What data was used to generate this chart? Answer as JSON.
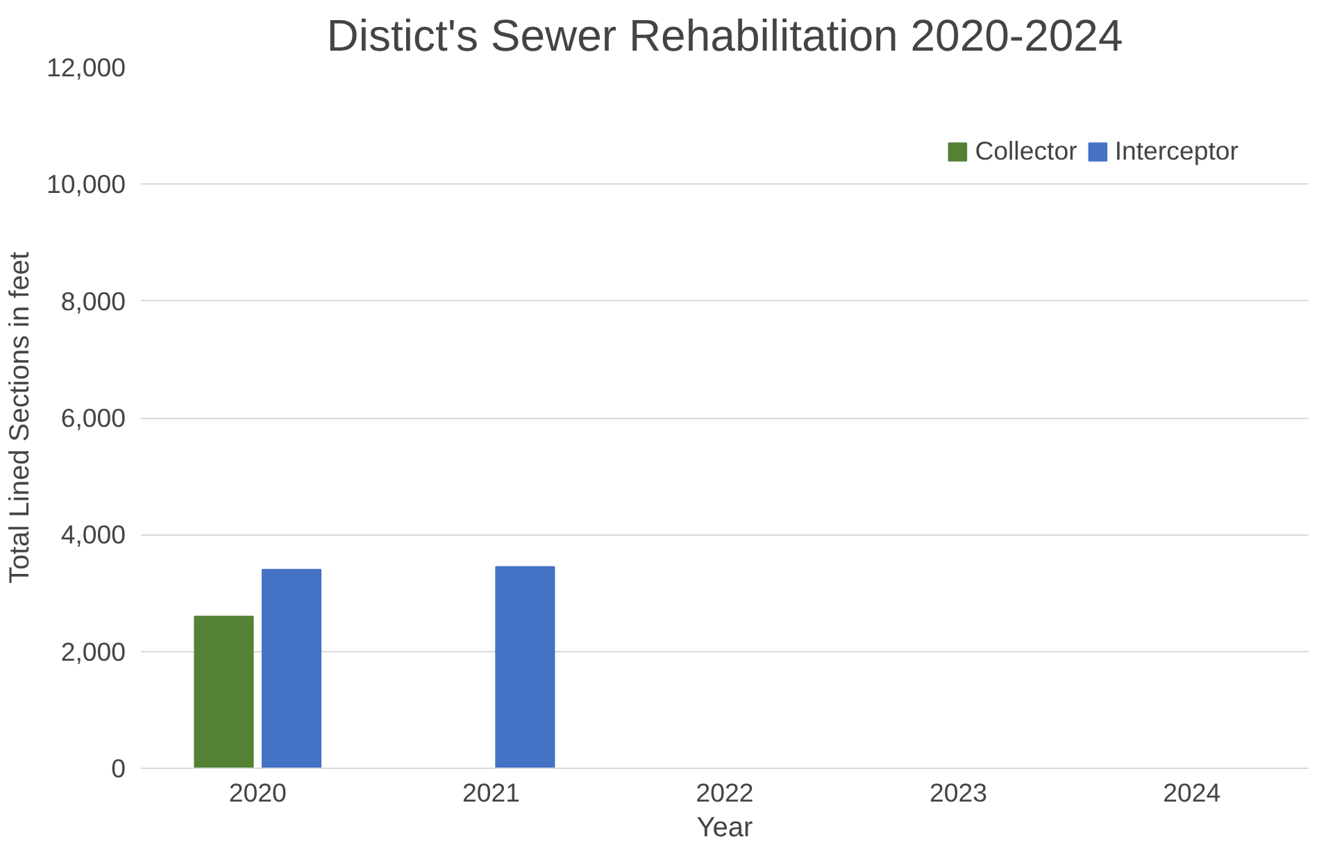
{
  "chart_data": {
    "type": "bar",
    "title": "Distict's Sewer Rehabilitation 2020-2024",
    "xlabel": "Year",
    "ylabel": "Total Lined Sections in feet",
    "categories": [
      "2020",
      "2021",
      "2022",
      "2023",
      "2024"
    ],
    "series": [
      {
        "name": "Collector",
        "color": "#548235",
        "values": [
          2600,
          null,
          null,
          null,
          null
        ]
      },
      {
        "name": "Interceptor",
        "color": "#4472c4",
        "values": [
          3400,
          3450,
          null,
          null,
          null
        ]
      }
    ],
    "ylim": [
      0,
      12000
    ],
    "yticks": [
      {
        "value": 0,
        "label": "0"
      },
      {
        "value": 2000,
        "label": "2,000"
      },
      {
        "value": 4000,
        "label": "4,000"
      },
      {
        "value": 6000,
        "label": "6,000"
      },
      {
        "value": 8000,
        "label": "8,000"
      },
      {
        "value": 10000,
        "label": "10,000"
      },
      {
        "value": 12000,
        "label": "12,000"
      }
    ],
    "grid": "y",
    "legend": "top right"
  }
}
